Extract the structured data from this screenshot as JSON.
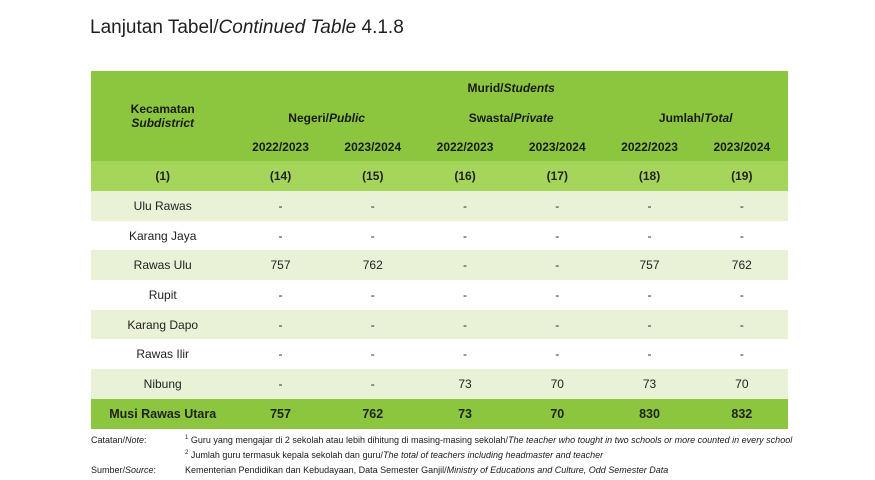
{
  "title": {
    "prefix": "Lanjutan Tabel/",
    "italic": "Continued Table",
    "number": " 4.1.8"
  },
  "header": {
    "district_id": "Kecamatan",
    "district_en": "Subdistrict",
    "students_id": "Murid/",
    "students_en": "Students",
    "groups": [
      {
        "id": "Negeri/",
        "en": "Public"
      },
      {
        "id": "Swasta/",
        "en": "Private"
      },
      {
        "id": "Jumlah/",
        "en": "Total"
      }
    ],
    "years": [
      "2022/2023",
      "2023/2024",
      "2022/2023",
      "2023/2024",
      "2022/2023",
      "2023/2024"
    ],
    "col_numbers": [
      "(1)",
      "(14)",
      "(15)",
      "(16)",
      "(17)",
      "(18)",
      "(19)"
    ]
  },
  "rows": [
    {
      "name": "Ulu Rawas",
      "values": [
        "-",
        "-",
        "-",
        "-",
        "-",
        "-"
      ]
    },
    {
      "name": "Karang Jaya",
      "values": [
        "-",
        "-",
        "-",
        "-",
        "-",
        "-"
      ]
    },
    {
      "name": "Rawas Ulu",
      "values": [
        "757",
        "762",
        "-",
        "-",
        "757",
        "762"
      ]
    },
    {
      "name": "Rupit",
      "values": [
        "-",
        "-",
        "-",
        "-",
        "-",
        "-"
      ]
    },
    {
      "name": "Karang Dapo",
      "values": [
        "-",
        "-",
        "-",
        "-",
        "-",
        "-"
      ]
    },
    {
      "name": "Rawas Ilir",
      "values": [
        "-",
        "-",
        "-",
        "-",
        "-",
        "-"
      ]
    },
    {
      "name": "Nibung",
      "values": [
        "-",
        "-",
        "73",
        "70",
        "73",
        "70"
      ]
    }
  ],
  "total": {
    "name": "Musi Rawas Utara",
    "values": [
      "757",
      "762",
      "73",
      "70",
      "830",
      "832"
    ]
  },
  "notes": {
    "note_label_id": "Catatan/",
    "note_label_en": "Note",
    "note1_sup": "1",
    "note1_id": " Guru yang mengajar di 2 sekolah atau lebih dihitung di masing-masing sekolah/",
    "note1_en": "The teacher who tought in two schools or more counted in every school",
    "note2_sup": "2",
    "note2_id": " Jumlah guru termasuk kepala sekolah dan guru/",
    "note2_en": "The total of teachers including headmaster and teacher",
    "source_label_id": "Sumber/",
    "source_label_en": "Source",
    "source_id": "Kementerian Pendidikan dan Kebudayaan, Data Semester Ganjil/",
    "source_en": "Ministry of Educations and Culture, Odd Semester Data"
  }
}
